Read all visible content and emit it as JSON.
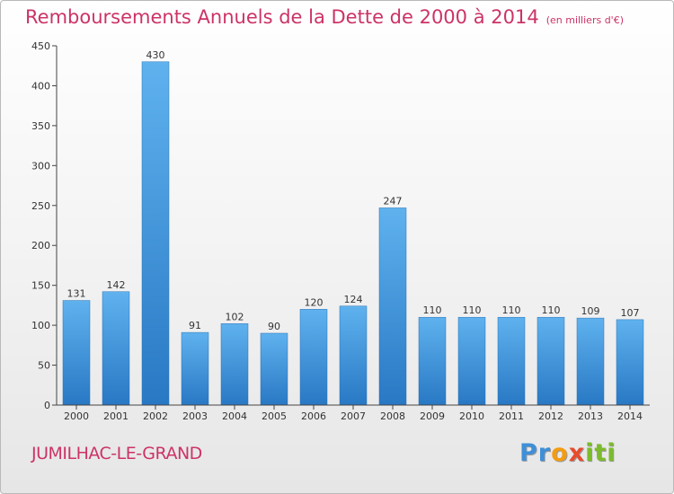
{
  "chart_data": {
    "type": "bar",
    "title": "Remboursements Annuels de la Dette de 2000 à 2014",
    "unit_note": "(en milliers d'€)",
    "categories": [
      "2000",
      "2001",
      "2002",
      "2003",
      "2004",
      "2005",
      "2006",
      "2007",
      "2008",
      "2009",
      "2010",
      "2011",
      "2012",
      "2013",
      "2014"
    ],
    "values": [
      131,
      142,
      430,
      91,
      102,
      90,
      120,
      124,
      247,
      110,
      110,
      110,
      110,
      109,
      107
    ],
    "value_labels": [
      "131",
      "142",
      "430",
      "91",
      "102",
      "90",
      "120",
      "124",
      "247",
      "110",
      "110",
      "110",
      "110",
      "109",
      "107"
    ],
    "ylim": [
      0,
      450
    ],
    "yticks": [
      "0",
      "50",
      "100",
      "150",
      "200",
      "250",
      "300",
      "350",
      "400",
      "450"
    ],
    "grid": false,
    "bar_color": "#3a93d8",
    "xlabel": "",
    "ylabel": ""
  },
  "footer": {
    "commune": "JUMILHAC-LE-GRAND",
    "logo_letters": [
      {
        "ch": "P",
        "color": "#3f8fd8"
      },
      {
        "ch": "r",
        "color": "#3f8fd8"
      },
      {
        "ch": "o",
        "color": "#f39c12"
      },
      {
        "ch": "x",
        "color": "#e84b2d"
      },
      {
        "ch": "i",
        "color": "#7cbb2c"
      },
      {
        "ch": "t",
        "color": "#7cbb2c"
      },
      {
        "ch": "i",
        "color": "#7cbb2c"
      }
    ]
  }
}
